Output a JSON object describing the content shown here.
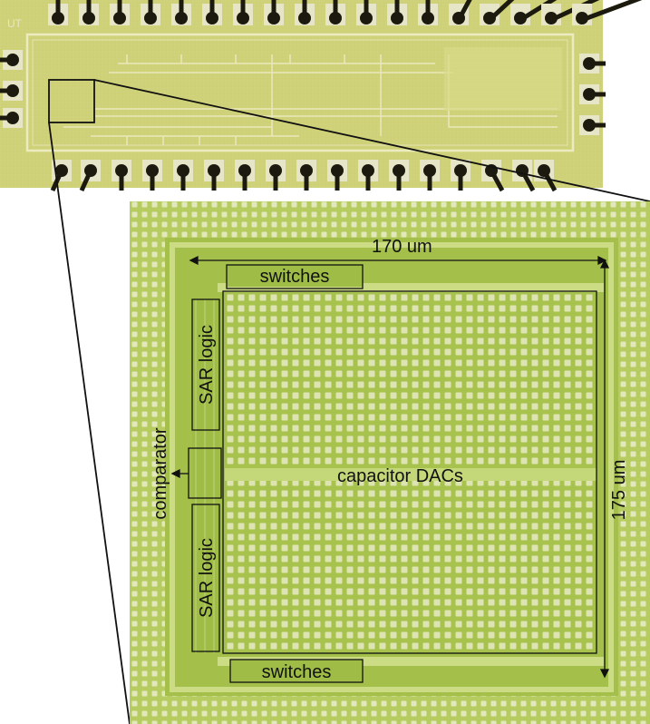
{
  "labels": {
    "width": "170 um",
    "height": "175 um",
    "switches_top": "switches",
    "switches_bottom": "switches",
    "sar_logic_top": "SAR logic",
    "sar_logic_bottom": "SAR logic",
    "comparator": "comparator",
    "capacitor_dacs": "capacitor DACs",
    "chip_corner_mark": "UT"
  },
  "colors": {
    "die": "#cfd178",
    "die_light": "#dfe09a",
    "pad": "#e6e5c8",
    "bond_wire": "#1c1a0e",
    "zoom_bg": "#a9c44e",
    "zoom_dot": "#dde4b4",
    "outline": "#111111"
  }
}
